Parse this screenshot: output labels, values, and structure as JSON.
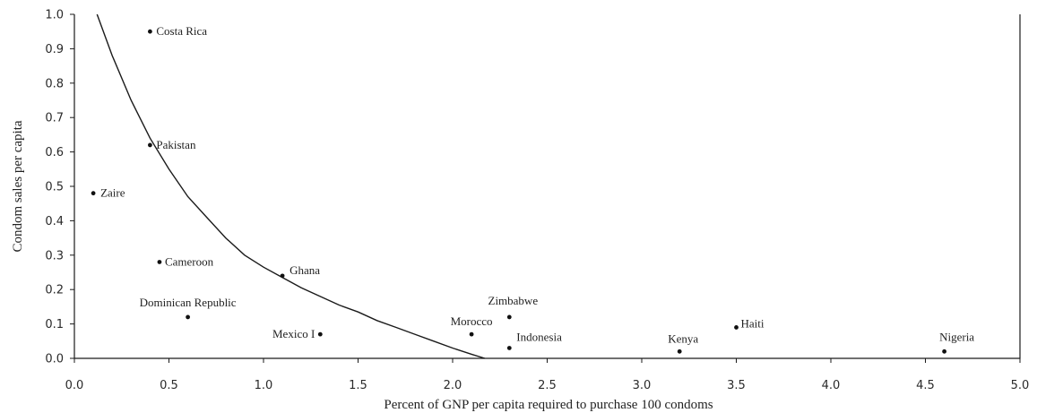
{
  "chart_data": {
    "type": "scatter",
    "title": "",
    "xlabel": "Percent of GNP per capita required to purchase 100 condoms",
    "ylabel": "Condom sales per capita",
    "xlim": [
      0.0,
      5.0
    ],
    "ylim": [
      0.0,
      1.0
    ],
    "x_ticks": [
      "0.0",
      "0.5",
      "1.0",
      "1.5",
      "2.0",
      "2.5",
      "3.0",
      "3.5",
      "4.0",
      "4.5",
      "5.0"
    ],
    "y_ticks": [
      "0.0",
      "0.1",
      "0.2",
      "0.3",
      "0.4",
      "0.5",
      "0.6",
      "0.7",
      "0.8",
      "0.9",
      "1.0"
    ],
    "grid": false,
    "points": [
      {
        "label": "Costa Rica",
        "x": 0.4,
        "y": 0.95
      },
      {
        "label": "Pakistan",
        "x": 0.4,
        "y": 0.62
      },
      {
        "label": "Zaire",
        "x": 0.1,
        "y": 0.48
      },
      {
        "label": "Cameroon",
        "x": 0.45,
        "y": 0.28
      },
      {
        "label": "Ghana",
        "x": 1.1,
        "y": 0.24
      },
      {
        "label": "Dominican Republic",
        "x": 0.6,
        "y": 0.12
      },
      {
        "label": "Mexico I",
        "x": 1.3,
        "y": 0.07
      },
      {
        "label": "Morocco",
        "x": 2.1,
        "y": 0.07
      },
      {
        "label": "Zimbabwe",
        "x": 2.3,
        "y": 0.12
      },
      {
        "label": "Indonesia",
        "x": 2.3,
        "y": 0.03
      },
      {
        "label": "Kenya",
        "x": 3.2,
        "y": 0.02
      },
      {
        "label": "Haiti",
        "x": 3.5,
        "y": 0.09
      },
      {
        "label": "Nigeria",
        "x": 4.6,
        "y": 0.02
      }
    ],
    "fit_curve": [
      {
        "x": 0.12,
        "y": 1.0
      },
      {
        "x": 0.2,
        "y": 0.88
      },
      {
        "x": 0.3,
        "y": 0.75
      },
      {
        "x": 0.4,
        "y": 0.64
      },
      {
        "x": 0.5,
        "y": 0.55
      },
      {
        "x": 0.6,
        "y": 0.47
      },
      {
        "x": 0.7,
        "y": 0.41
      },
      {
        "x": 0.8,
        "y": 0.35
      },
      {
        "x": 0.9,
        "y": 0.3
      },
      {
        "x": 1.0,
        "y": 0.265
      },
      {
        "x": 1.1,
        "y": 0.235
      },
      {
        "x": 1.2,
        "y": 0.205
      },
      {
        "x": 1.3,
        "y": 0.18
      },
      {
        "x": 1.4,
        "y": 0.155
      },
      {
        "x": 1.5,
        "y": 0.135
      },
      {
        "x": 1.6,
        "y": 0.11
      },
      {
        "x": 1.7,
        "y": 0.09
      },
      {
        "x": 1.8,
        "y": 0.07
      },
      {
        "x": 1.9,
        "y": 0.05
      },
      {
        "x": 2.0,
        "y": 0.03
      },
      {
        "x": 2.1,
        "y": 0.012
      },
      {
        "x": 2.17,
        "y": 0.0
      }
    ]
  }
}
